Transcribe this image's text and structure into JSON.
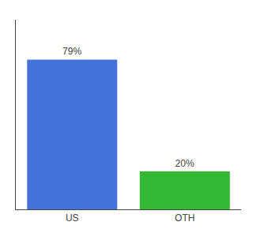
{
  "chart_data": {
    "type": "bar",
    "categories": [
      "US",
      "OTH"
    ],
    "values": [
      79,
      20
    ],
    "colors": [
      "#4472db",
      "#32b832"
    ],
    "value_labels": [
      "79%",
      "20%"
    ],
    "data_labels": true,
    "ylim": [
      0,
      100
    ],
    "tick_labels": "x",
    "grid": false
  }
}
